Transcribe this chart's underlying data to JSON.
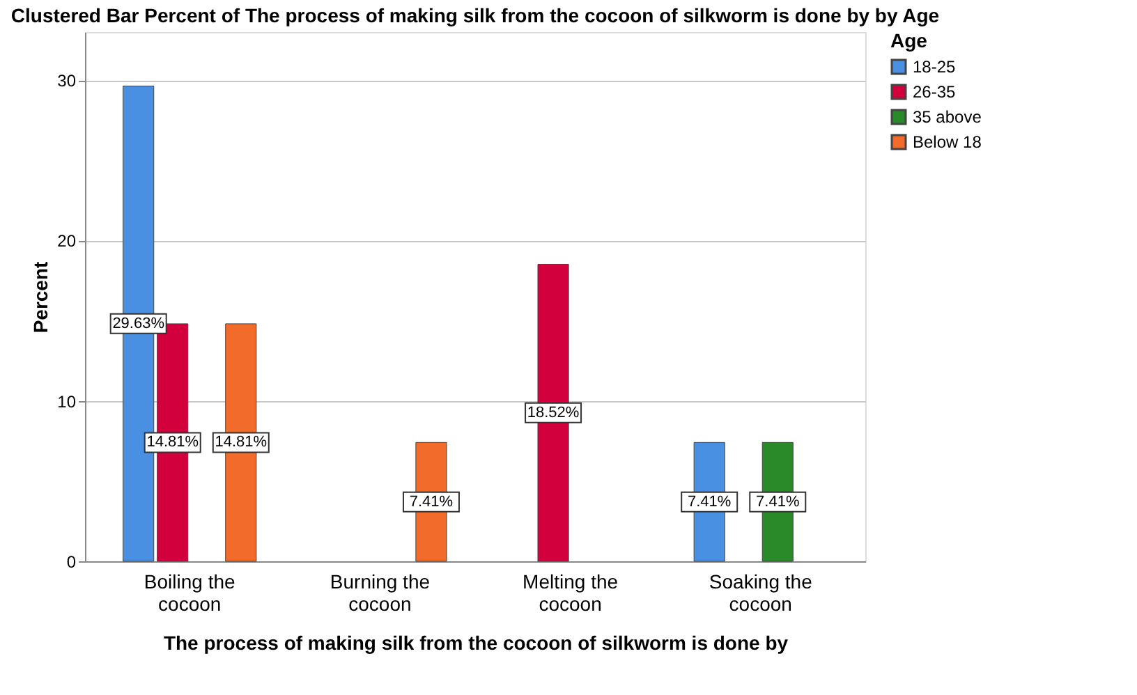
{
  "chart_data": {
    "type": "bar",
    "title": "Clustered Bar Percent of The process of making silk from the cocoon of silkworm is done by  by Age",
    "xlabel": "The process of making silk from the cocoon of silkworm is done by",
    "ylabel": "Percent",
    "legend_title": "Age",
    "legend": "top right",
    "grid": "y",
    "categories": [
      "Boiling the cocoon",
      "Burning the cocoon",
      "Melting the cocoon",
      "Soaking the cocoon"
    ],
    "ylim": [
      0,
      33
    ],
    "yticks": [
      0,
      10,
      20,
      30
    ],
    "series": [
      {
        "name": "18-25",
        "color": "#4a90e2",
        "values": [
          29.63,
          null,
          null,
          7.41
        ],
        "value_labels": [
          "29.63%",
          null,
          null,
          "7.41%"
        ]
      },
      {
        "name": "26-35",
        "color": "#d2003c",
        "values": [
          14.81,
          null,
          18.52,
          null
        ],
        "value_labels": [
          "14.81%",
          null,
          "18.52%",
          null
        ]
      },
      {
        "name": "35 above",
        "color": "#2a8a2a",
        "values": [
          null,
          null,
          null,
          7.41
        ],
        "value_labels": [
          null,
          null,
          null,
          "7.41%"
        ]
      },
      {
        "name": "Below 18",
        "color": "#f26b2a",
        "values": [
          14.81,
          7.41,
          null,
          null
        ],
        "value_labels": [
          "14.81%",
          "7.41%",
          null,
          null
        ]
      }
    ]
  }
}
